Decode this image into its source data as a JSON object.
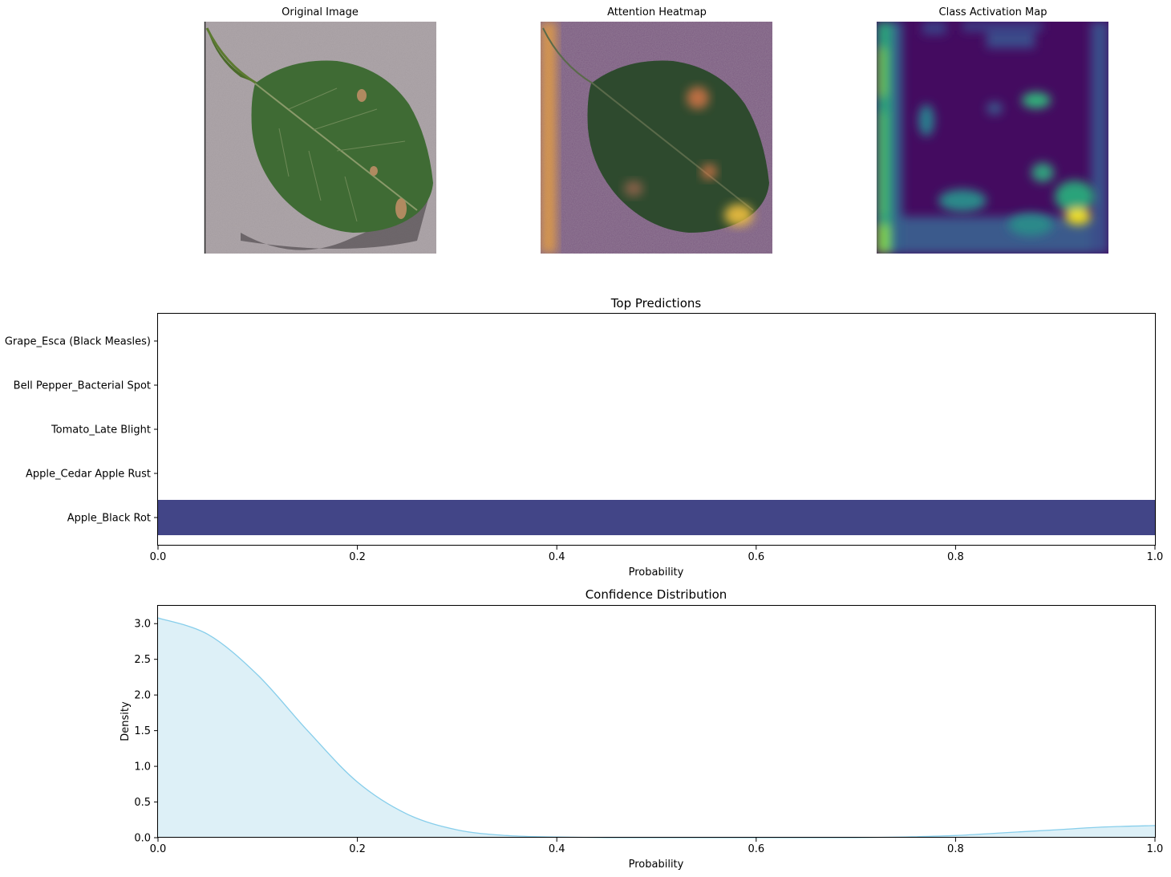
{
  "panels": [
    {
      "title": "Original Image"
    },
    {
      "title": "Attention Heatmap"
    },
    {
      "title": "Class Activation Map"
    }
  ],
  "chart_data": [
    {
      "type": "bar",
      "orientation": "horizontal",
      "title": "Top Predictions",
      "xlabel": "Probability",
      "ylabel": "",
      "categories": [
        "Apple_Black Rot",
        "Apple_Cedar Apple Rust",
        "Tomato_Late Blight",
        "Bell Pepper_Bacterial Spot",
        "Grape_Esca (Black Measles)"
      ],
      "values": [
        1.0,
        0.0,
        0.0,
        0.0,
        0.0
      ],
      "xlim": [
        0,
        1.0
      ],
      "xticks": [
        "0.0",
        "0.2",
        "0.4",
        "0.6",
        "0.8",
        "1.0"
      ],
      "bar_color": "#424587",
      "grid": false
    },
    {
      "type": "area",
      "title": "Confidence Distribution",
      "xlabel": "Probability",
      "ylabel": "Density",
      "x": [
        0.0,
        0.05,
        0.1,
        0.15,
        0.2,
        0.25,
        0.3,
        0.35,
        0.4,
        0.45,
        0.5,
        0.55,
        0.6,
        0.65,
        0.7,
        0.75,
        0.8,
        0.85,
        0.9,
        0.95,
        1.0
      ],
      "y": [
        3.08,
        2.85,
        2.28,
        1.5,
        0.78,
        0.33,
        0.11,
        0.03,
        0.01,
        0.0,
        0.0,
        0.0,
        0.0,
        0.0,
        0.0,
        0.01,
        0.03,
        0.07,
        0.11,
        0.15,
        0.17
      ],
      "xlim": [
        0,
        1.0
      ],
      "ylim": [
        0,
        3.25
      ],
      "xticks": [
        "0.0",
        "0.2",
        "0.4",
        "0.6",
        "0.8",
        "1.0"
      ],
      "yticks": [
        "0.0",
        "0.5",
        "1.0",
        "1.5",
        "2.0",
        "2.5",
        "3.0"
      ],
      "line_color": "#87ceeb",
      "fill_color": "#ddf0f7",
      "grid": false
    }
  ]
}
